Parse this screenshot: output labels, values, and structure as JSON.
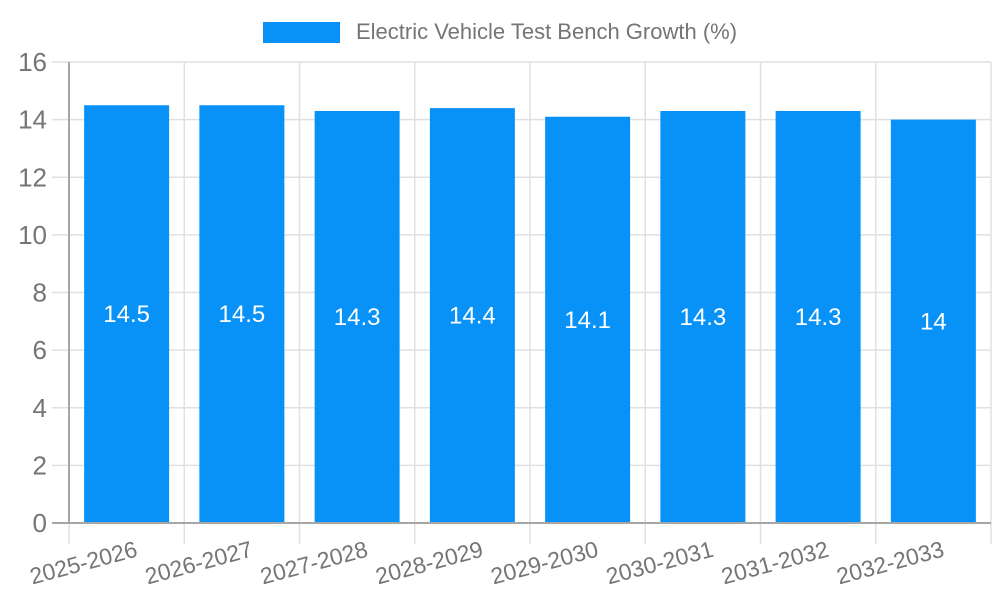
{
  "legend": {
    "label": "Electric Vehicle Test Bench Growth (%)"
  },
  "colors": {
    "bar": "#0892f8",
    "grid": "#e0e0e0",
    "axis": "#a6a6a6",
    "axis_label": "#757575",
    "bar_label": "#ffffff",
    "background": "#ffffff"
  },
  "chart_data": {
    "type": "bar",
    "title": "",
    "xlabel": "",
    "ylabel": "",
    "categories": [
      "2025-2026",
      "2026-2027",
      "2027-2028",
      "2028-2029",
      "2029-2030",
      "2030-2031",
      "2031-2032",
      "2032-2033"
    ],
    "series": [
      {
        "name": "Electric Vehicle Test Bench Growth (%)",
        "values": [
          14.5,
          14.5,
          14.3,
          14.4,
          14.1,
          14.3,
          14.3,
          14
        ]
      }
    ],
    "value_labels": [
      "14.5",
      "14.5",
      "14.3",
      "14.4",
      "14.1",
      "14.3",
      "14.3",
      "14"
    ],
    "ylim": [
      0,
      16
    ],
    "yticks": [
      0,
      2,
      4,
      6,
      8,
      10,
      12,
      14,
      16
    ],
    "grid": true,
    "legend_position": "top",
    "bar_label_position": "inside-center",
    "x_label_rotation_deg": -15
  }
}
